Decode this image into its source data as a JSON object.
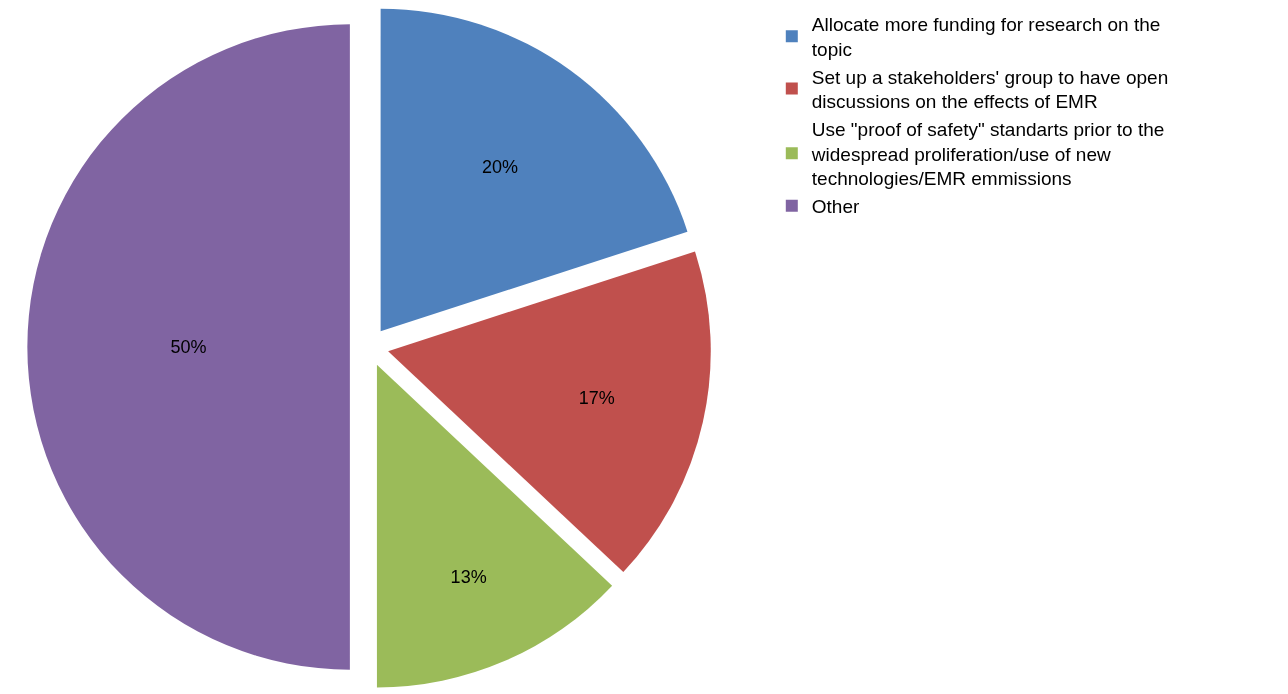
{
  "chart_data": {
    "type": "pie",
    "categories": [
      "Allocate more funding for research on the topic",
      "Set up a stakeholders' group to have open discussions on the effects of EMR",
      "Use \"proof of safety\" standarts prior to the widespread proliferation/use of new technologies/EMR emmissions",
      "Other"
    ],
    "values": [
      20,
      17,
      13,
      50
    ],
    "colors": [
      "#4f81bd",
      "#c0504d",
      "#9bbb59",
      "#8064a2"
    ],
    "value_labels": [
      "20%",
      "17%",
      "13%",
      "50%"
    ],
    "legend": "right"
  }
}
